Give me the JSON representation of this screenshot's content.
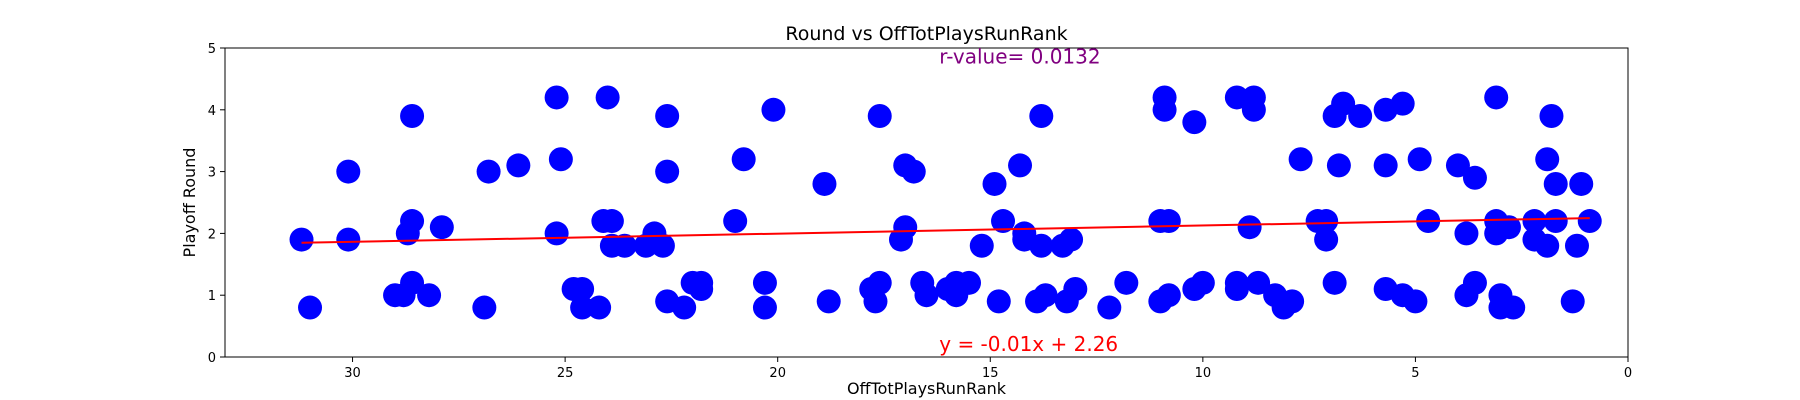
{
  "chart_data": {
    "type": "scatter",
    "title": "Round vs OffTotPlaysRunRank",
    "xlabel": "OffTotPlaysRunRank",
    "ylabel": "Playoff Round",
    "xlim": [
      33,
      0
    ],
    "ylim": [
      0,
      5
    ],
    "x_ticks": [
      30,
      25,
      20,
      15,
      10,
      5,
      0
    ],
    "y_ticks": [
      0,
      1,
      2,
      3,
      4,
      5
    ],
    "x_tick_labels": [
      "30",
      "25",
      "20",
      "15",
      "10",
      "5",
      "0"
    ],
    "y_tick_labels": [
      "0",
      "1",
      "2",
      "3",
      "4",
      "5"
    ],
    "grid": false,
    "point_color": "#0000ff",
    "line_color": "#ff0000",
    "annotations": {
      "r_value_text": "r-value= 0.0132",
      "r_value_color": "#800080",
      "r_value_at": [
        16.2,
        4.75
      ],
      "equation_text": "y = -0.01x + 2.26",
      "equation_color": "#ff0000",
      "equation_at": [
        16.2,
        0.1
      ]
    },
    "regression": {
      "slope": -0.0132,
      "intercept": 2.26,
      "x_range": [
        31.2,
        0.9
      ]
    },
    "points": [
      {
        "x": 31.2,
        "y": 1.9
      },
      {
        "x": 31.0,
        "y": 0.8
      },
      {
        "x": 30.1,
        "y": 3.0
      },
      {
        "x": 30.1,
        "y": 1.9
      },
      {
        "x": 29.0,
        "y": 1.0
      },
      {
        "x": 28.8,
        "y": 1.0
      },
      {
        "x": 28.7,
        "y": 2.0
      },
      {
        "x": 28.6,
        "y": 2.2
      },
      {
        "x": 28.6,
        "y": 1.2
      },
      {
        "x": 28.6,
        "y": 3.9
      },
      {
        "x": 28.2,
        "y": 1.0
      },
      {
        "x": 27.9,
        "y": 2.1
      },
      {
        "x": 26.9,
        "y": 0.8
      },
      {
        "x": 26.8,
        "y": 3.0
      },
      {
        "x": 26.1,
        "y": 3.1
      },
      {
        "x": 25.2,
        "y": 4.2
      },
      {
        "x": 25.2,
        "y": 2.0
      },
      {
        "x": 25.1,
        "y": 3.2
      },
      {
        "x": 24.8,
        "y": 1.1
      },
      {
        "x": 24.6,
        "y": 1.1
      },
      {
        "x": 24.6,
        "y": 0.8
      },
      {
        "x": 24.2,
        "y": 0.8
      },
      {
        "x": 24.1,
        "y": 2.2
      },
      {
        "x": 23.9,
        "y": 2.2
      },
      {
        "x": 24.0,
        "y": 4.2
      },
      {
        "x": 23.9,
        "y": 1.8
      },
      {
        "x": 23.6,
        "y": 1.8
      },
      {
        "x": 23.1,
        "y": 1.8
      },
      {
        "x": 22.9,
        "y": 2.0
      },
      {
        "x": 22.7,
        "y": 1.8
      },
      {
        "x": 22.6,
        "y": 3.9
      },
      {
        "x": 22.6,
        "y": 3.0
      },
      {
        "x": 22.6,
        "y": 0.9
      },
      {
        "x": 22.2,
        "y": 0.8
      },
      {
        "x": 22.0,
        "y": 1.2
      },
      {
        "x": 21.8,
        "y": 1.1
      },
      {
        "x": 21.8,
        "y": 1.2
      },
      {
        "x": 21.0,
        "y": 2.2
      },
      {
        "x": 20.8,
        "y": 3.2
      },
      {
        "x": 20.3,
        "y": 1.2
      },
      {
        "x": 20.3,
        "y": 0.8
      },
      {
        "x": 20.1,
        "y": 4.0
      },
      {
        "x": 18.9,
        "y": 2.8
      },
      {
        "x": 18.8,
        "y": 0.9
      },
      {
        "x": 17.8,
        "y": 1.1
      },
      {
        "x": 17.7,
        "y": 0.9
      },
      {
        "x": 17.6,
        "y": 1.2
      },
      {
        "x": 17.6,
        "y": 3.9
      },
      {
        "x": 17.1,
        "y": 1.9
      },
      {
        "x": 17.0,
        "y": 2.1
      },
      {
        "x": 17.0,
        "y": 3.1
      },
      {
        "x": 16.8,
        "y": 3.0
      },
      {
        "x": 16.6,
        "y": 1.2
      },
      {
        "x": 16.5,
        "y": 1.0
      },
      {
        "x": 16.0,
        "y": 1.1
      },
      {
        "x": 15.8,
        "y": 1.2
      },
      {
        "x": 15.8,
        "y": 1.0
      },
      {
        "x": 15.5,
        "y": 1.2
      },
      {
        "x": 15.2,
        "y": 1.8
      },
      {
        "x": 14.9,
        "y": 2.8
      },
      {
        "x": 14.8,
        "y": 0.9
      },
      {
        "x": 14.7,
        "y": 2.2
      },
      {
        "x": 14.3,
        "y": 3.1
      },
      {
        "x": 14.2,
        "y": 2.0
      },
      {
        "x": 14.2,
        "y": 1.9
      },
      {
        "x": 13.9,
        "y": 0.9
      },
      {
        "x": 13.8,
        "y": 3.9
      },
      {
        "x": 13.8,
        "y": 1.8
      },
      {
        "x": 13.7,
        "y": 1.0
      },
      {
        "x": 13.3,
        "y": 1.8
      },
      {
        "x": 13.1,
        "y": 1.9
      },
      {
        "x": 13.2,
        "y": 0.9
      },
      {
        "x": 13.0,
        "y": 1.1
      },
      {
        "x": 12.2,
        "y": 0.8
      },
      {
        "x": 11.8,
        "y": 1.2
      },
      {
        "x": 11.0,
        "y": 0.9
      },
      {
        "x": 11.0,
        "y": 2.2
      },
      {
        "x": 10.9,
        "y": 4.2
      },
      {
        "x": 10.9,
        "y": 4.0
      },
      {
        "x": 10.8,
        "y": 1.0
      },
      {
        "x": 10.8,
        "y": 2.2
      },
      {
        "x": 10.2,
        "y": 3.8
      },
      {
        "x": 10.2,
        "y": 1.1
      },
      {
        "x": 10.0,
        "y": 1.2
      },
      {
        "x": 9.2,
        "y": 4.2
      },
      {
        "x": 9.2,
        "y": 1.1
      },
      {
        "x": 9.2,
        "y": 1.2
      },
      {
        "x": 8.8,
        "y": 4.2
      },
      {
        "x": 8.8,
        "y": 4.0
      },
      {
        "x": 8.9,
        "y": 2.1
      },
      {
        "x": 8.7,
        "y": 1.2
      },
      {
        "x": 8.3,
        "y": 1.0
      },
      {
        "x": 8.1,
        "y": 0.8
      },
      {
        "x": 7.9,
        "y": 0.9
      },
      {
        "x": 7.7,
        "y": 3.2
      },
      {
        "x": 7.3,
        "y": 2.2
      },
      {
        "x": 7.1,
        "y": 2.2
      },
      {
        "x": 7.1,
        "y": 1.9
      },
      {
        "x": 6.9,
        "y": 1.2
      },
      {
        "x": 6.9,
        "y": 3.9
      },
      {
        "x": 6.7,
        "y": 4.1
      },
      {
        "x": 6.8,
        "y": 3.1
      },
      {
        "x": 6.3,
        "y": 3.9
      },
      {
        "x": 5.7,
        "y": 4.0
      },
      {
        "x": 5.7,
        "y": 3.1
      },
      {
        "x": 5.7,
        "y": 1.1
      },
      {
        "x": 5.3,
        "y": 4.1
      },
      {
        "x": 5.3,
        "y": 1.0
      },
      {
        "x": 5.0,
        "y": 0.9
      },
      {
        "x": 4.9,
        "y": 3.2
      },
      {
        "x": 4.7,
        "y": 2.2
      },
      {
        "x": 4.0,
        "y": 3.1
      },
      {
        "x": 3.8,
        "y": 1.0
      },
      {
        "x": 3.8,
        "y": 2.0
      },
      {
        "x": 3.6,
        "y": 2.9
      },
      {
        "x": 3.6,
        "y": 1.2
      },
      {
        "x": 3.1,
        "y": 4.2
      },
      {
        "x": 3.1,
        "y": 2.2
      },
      {
        "x": 3.1,
        "y": 2.0
      },
      {
        "x": 3.0,
        "y": 1.0
      },
      {
        "x": 3.0,
        "y": 0.8
      },
      {
        "x": 2.7,
        "y": 0.8
      },
      {
        "x": 2.8,
        "y": 2.1
      },
      {
        "x": 2.2,
        "y": 1.9
      },
      {
        "x": 2.2,
        "y": 2.2
      },
      {
        "x": 1.8,
        "y": 3.9
      },
      {
        "x": 1.9,
        "y": 3.2
      },
      {
        "x": 1.9,
        "y": 1.8
      },
      {
        "x": 1.7,
        "y": 2.8
      },
      {
        "x": 1.7,
        "y": 2.2
      },
      {
        "x": 1.3,
        "y": 0.9
      },
      {
        "x": 1.2,
        "y": 1.8
      },
      {
        "x": 1.1,
        "y": 2.8
      },
      {
        "x": 0.9,
        "y": 2.2
      }
    ]
  }
}
